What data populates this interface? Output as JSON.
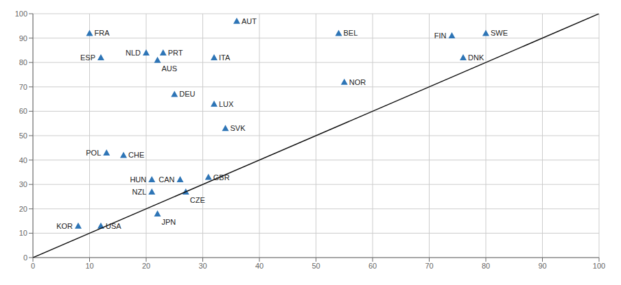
{
  "chart_data": {
    "type": "scatter",
    "xlim": [
      0,
      100
    ],
    "ylim": [
      0,
      100
    ],
    "xticks": [
      0,
      10,
      20,
      30,
      40,
      50,
      60,
      70,
      80,
      90,
      100
    ],
    "yticks": [
      0,
      10,
      20,
      30,
      40,
      50,
      60,
      70,
      80,
      90,
      100
    ],
    "grid": true,
    "series": [
      {
        "type": "scatter",
        "marker": "triangle",
        "color": "#2E75B6",
        "x": [
          8,
          12,
          10,
          12,
          13,
          16,
          20,
          23,
          22,
          21,
          21,
          22,
          25,
          26,
          27,
          32,
          32,
          34,
          31,
          36,
          55,
          54,
          74,
          76,
          80
        ],
        "y": [
          13,
          13,
          92,
          82,
          43,
          42,
          84,
          84,
          81,
          32,
          27,
          18,
          67,
          32,
          27,
          63,
          82,
          53,
          33,
          97,
          72,
          92,
          91,
          82,
          92
        ],
        "labels": [
          "KOR",
          "USA",
          "FRA",
          "ESP",
          "POL",
          "CHE",
          "NLD",
          "PRT",
          "AUS",
          "HUN",
          "NZL",
          "JPN",
          "DEU",
          "CAN",
          "CZE",
          "LUX",
          "ITA",
          "SVK",
          "GBR",
          "AUT",
          "NOR",
          "BEL",
          "FIN",
          "DNK",
          "SWE"
        ]
      },
      {
        "type": "line",
        "color": "#111111",
        "x": [
          0,
          100
        ],
        "y": [
          0,
          100
        ]
      }
    ]
  }
}
